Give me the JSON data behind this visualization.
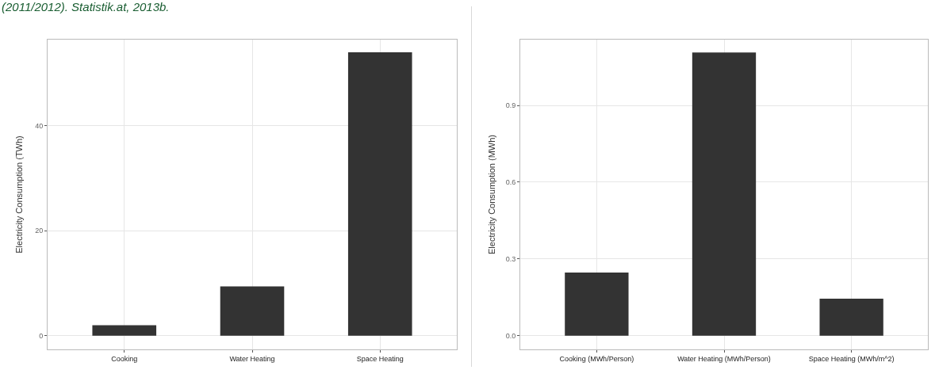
{
  "chart_data": [
    {
      "type": "bar",
      "annotations": [
        "(2011/2012). Statistik.at, 2013b."
      ],
      "ylabel": "Electricity Consumption (TWh)",
      "categories": [
        "Cooking",
        "Water Heating",
        "Space Heating"
      ],
      "values": [
        2.0,
        9.4,
        54.0
      ],
      "color": "#333333",
      "ylim": [
        -2.6,
        56.4
      ],
      "yticks": [
        0,
        20,
        40
      ],
      "grid": true
    },
    {
      "type": "bar",
      "ylabel": "Electricity Consumption (MWh)",
      "categories": [
        "Cooking (MWh/Person)",
        "Water Heating (MWh/Person)",
        "Space Heating (MWh/m^2)"
      ],
      "values": [
        0.247,
        1.107,
        0.145
      ],
      "color": "#333333",
      "ylim": [
        -0.053,
        1.157
      ],
      "yticks": [
        {
          "value": 0,
          "label": "0.0"
        },
        0.3,
        0.6,
        0.9
      ],
      "grid": true
    }
  ]
}
